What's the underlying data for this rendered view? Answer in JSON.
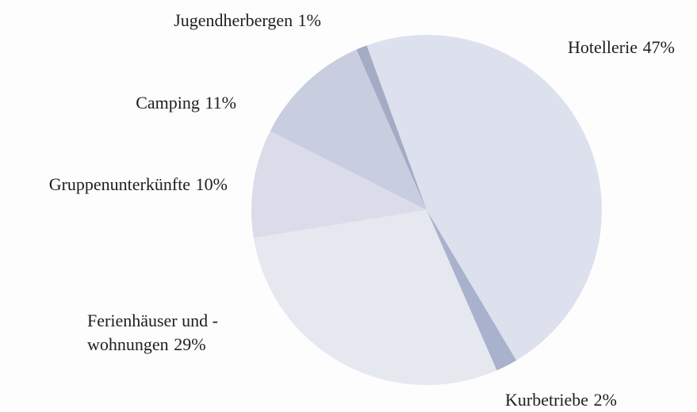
{
  "chart_data": {
    "type": "pie",
    "categories": [
      "Hotellerie",
      "Kurbetriebe",
      "Ferienhäuser und -wohnungen",
      "Gruppenunterkünfte",
      "Camping",
      "Jugendherbergen"
    ],
    "values": [
      47,
      2,
      29,
      10,
      11,
      1
    ],
    "value_labels": [
      "47%",
      "2%",
      "29%",
      "10%",
      "11%",
      "1%"
    ],
    "colors": [
      "#dde1ee",
      "#a9b2cc",
      "#e6e8f0",
      "#dadde9",
      "#c8cddf",
      "#a4abc5"
    ]
  }
}
